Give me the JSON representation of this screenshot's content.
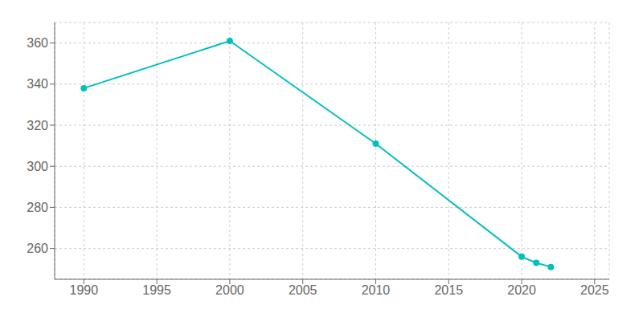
{
  "chart_data": {
    "type": "line",
    "x": [
      1990,
      2000,
      2010,
      2020,
      2021,
      2022
    ],
    "values": [
      338,
      361,
      311,
      256,
      253,
      251
    ],
    "color": "#00BFBF",
    "marker": "circle",
    "xlim": [
      1988,
      2026
    ],
    "xticks": [
      1990,
      1995,
      2000,
      2005,
      2010,
      2015,
      2020,
      2025
    ],
    "ylim": [
      245,
      370
    ],
    "yticks": [
      260,
      280,
      300,
      320,
      340,
      360
    ],
    "grid": true
  }
}
